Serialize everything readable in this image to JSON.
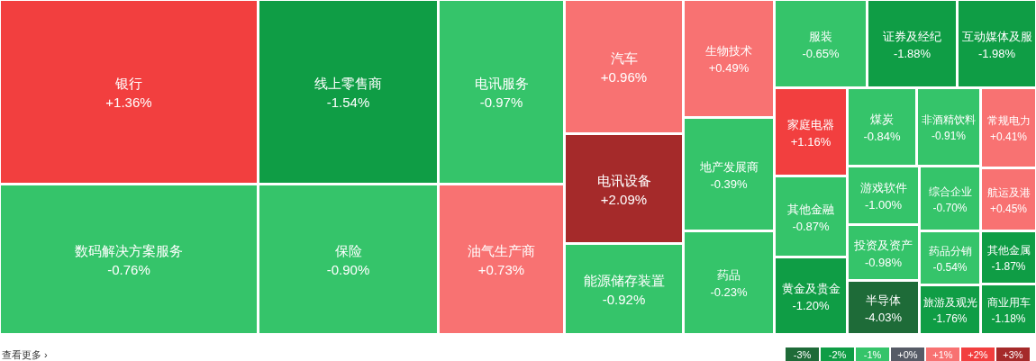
{
  "chart_data": [
    {
      "type": "other",
      "categories": [
        "银行",
        "数码解决方案服务",
        "线上零售商",
        "保险",
        "电讯服务",
        "油气生产商",
        "汽车",
        "电讯设备",
        "能源储存装置",
        "生物技术",
        "地产发展商",
        "药品",
        "服装",
        "证券及经纪",
        "互动媒体及服",
        "家庭电器",
        "其他金融",
        "黄金及贵金",
        "煤炭",
        "游戏软件",
        "投资及资产",
        "半导体",
        "非酒精饮料",
        "综合企业",
        "药品分销",
        "旅游及观光",
        "常规电力",
        "航运及港",
        "其他金属",
        "商业用车"
      ],
      "values": [
        1.36,
        -0.76,
        -1.54,
        -0.9,
        -0.97,
        0.73,
        0.96,
        2.09,
        -0.92,
        0.49,
        -0.39,
        -0.23,
        -0.65,
        -1.88,
        -1.98,
        1.16,
        -0.87,
        -1.2,
        -0.84,
        -1.0,
        -0.98,
        -4.03,
        -0.91,
        -0.7,
        -0.54,
        -1.76,
        0.41,
        0.45,
        -1.87,
        -1.18
      ],
      "value_labels": [
        "+1.36%",
        "-0.76%",
        "-1.54%",
        "-0.90%",
        "-0.97%",
        "+0.73%",
        "+0.96%",
        "+2.09%",
        "-0.92%",
        "+0.49%",
        "-0.39%",
        "-0.23%",
        "-0.65%",
        "-1.88%",
        "-1.98%",
        "+1.16%",
        "-0.87%",
        "-1.20%",
        "-0.84%",
        "-1.00%",
        "-0.98%",
        "-4.03%",
        "-0.91%",
        "-0.70%",
        "-0.54%",
        "-1.76%",
        "+0.41%",
        "+0.45%",
        "-1.87%",
        "-1.18%"
      ],
      "annotations": [
        "查看更多 ›"
      ]
    },
    {
      "type": "heatmap",
      "categories": [
        null,
        null,
        null,
        null,
        null,
        null,
        null
      ],
      "y_categories": [
        null
      ],
      "cells": [
        [
          -3,
          -2,
          -1,
          0,
          1,
          2,
          3
        ]
      ],
      "cell_labels": [
        [
          "-3%",
          "-2%",
          "-1%",
          "+0%",
          "+1%",
          "+2%",
          "+3%"
        ]
      ],
      "colors": [
        "#1e6b38",
        "#0f9d45",
        "#35c46a",
        "#565b66",
        "#f87272",
        "#f23f3f",
        "#a52a2a"
      ]
    }
  ]
}
